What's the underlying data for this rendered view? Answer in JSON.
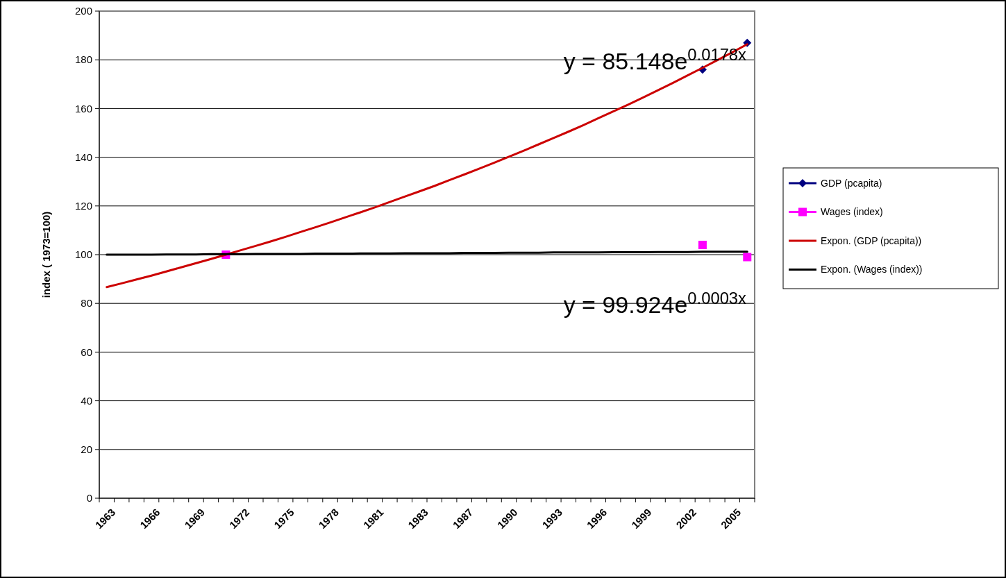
{
  "chart_data": {
    "type": "line",
    "categories": [
      "1963",
      null,
      null,
      "1966",
      null,
      null,
      "1969",
      null,
      null,
      "1972",
      null,
      null,
      "1975",
      null,
      null,
      "1978",
      null,
      null,
      "1981",
      null,
      null,
      "1983",
      null,
      null,
      "1987",
      null,
      null,
      "1990",
      null,
      null,
      "1993",
      null,
      null,
      "1996",
      null,
      null,
      "1999",
      null,
      null,
      "2002",
      null,
      null,
      "2005",
      null
    ],
    "series": [
      {
        "name": "GDP (pcapita)",
        "type": "scatter",
        "color": "#000080",
        "marker": "diamond",
        "values": [
          null,
          null,
          null,
          null,
          null,
          null,
          null,
          null,
          null,
          null,
          null,
          null,
          null,
          null,
          null,
          null,
          null,
          null,
          null,
          null,
          null,
          null,
          null,
          null,
          null,
          null,
          null,
          null,
          null,
          null,
          null,
          null,
          null,
          null,
          null,
          null,
          null,
          null,
          null,
          null,
          176,
          null,
          null,
          187
        ]
      },
      {
        "name": "Wages (index)",
        "type": "scatter",
        "color": "#ff00ff",
        "marker": "square",
        "values": [
          null,
          null,
          null,
          null,
          null,
          null,
          null,
          null,
          100,
          null,
          null,
          null,
          null,
          null,
          null,
          null,
          null,
          null,
          null,
          null,
          null,
          null,
          null,
          null,
          null,
          null,
          null,
          null,
          null,
          null,
          null,
          null,
          null,
          null,
          null,
          null,
          null,
          null,
          null,
          null,
          104,
          null,
          null,
          99
        ]
      },
      {
        "name": "Expon. (GDP (pcapita))",
        "color": "#cc0000",
        "marker": "none",
        "values": [
          86.7,
          88.2,
          89.8,
          91.4,
          93.1,
          94.8,
          96.5,
          98.2,
          100.0,
          101.8,
          103.6,
          105.4,
          107.3,
          109.3,
          111.2,
          113.2,
          115.3,
          117.3,
          119.4,
          121.6,
          123.8,
          126.0,
          128.2,
          130.6,
          132.9,
          135.3,
          137.7,
          140.2,
          142.7,
          145.3,
          147.9,
          150.5,
          153.2,
          156.0,
          158.8,
          161.6,
          164.5,
          167.5,
          170.5,
          173.6,
          176.7,
          179.9,
          183.1,
          186.4
        ]
      },
      {
        "name": "Expon. (Wages (index))",
        "color": "#000000",
        "marker": "none",
        "values": [
          100.0,
          100.0,
          100.0,
          100.0,
          100.1,
          100.1,
          100.1,
          100.2,
          100.2,
          100.2,
          100.3,
          100.3,
          100.3,
          100.3,
          100.4,
          100.4,
          100.4,
          100.5,
          100.5,
          100.5,
          100.6,
          100.6,
          100.6,
          100.6,
          100.7,
          100.7,
          100.7,
          100.8,
          100.8,
          100.8,
          100.9,
          100.9,
          100.9,
          100.9,
          101.0,
          101.0,
          101.0,
          101.1,
          101.1,
          101.1,
          101.2,
          101.2,
          101.2,
          101.2
        ]
      }
    ],
    "ylabel": "index ( 1973=100)",
    "ylim": [
      0,
      200
    ],
    "yticks": [
      0,
      20,
      40,
      60,
      80,
      100,
      120,
      140,
      160,
      180,
      200
    ],
    "grid": "y",
    "legend": "right",
    "annotations": [
      "y = 85.148e$^{0.0178x}$",
      "y = 99.924e$^{0.0003x}$"
    ]
  }
}
